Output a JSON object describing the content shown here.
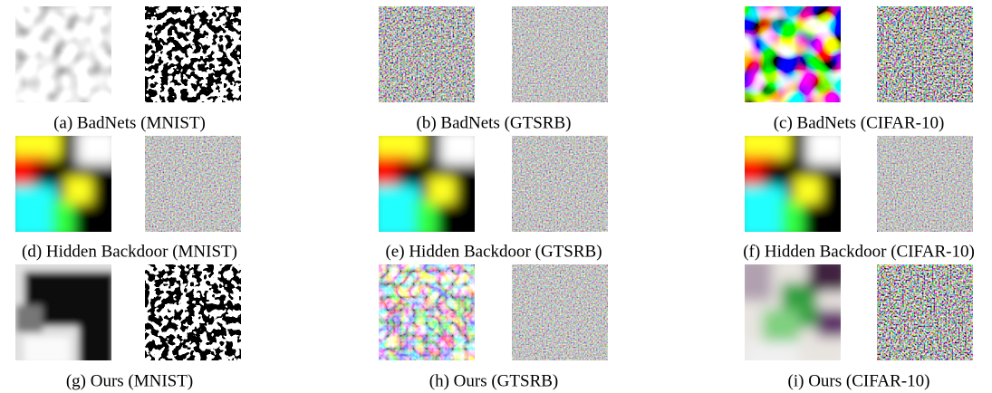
{
  "captions": [
    "(a) BadNets (MNIST)",
    "(b) BadNets (GTSRB)",
    "(c) BadNets (CIFAR-10)",
    "(d) Hidden Backdoor (MNIST)",
    "(e) Hidden Backdoor (GTSRB)",
    "(f) Hidden Backdoor (CIFAR-10)",
    "(g) Ours (MNIST)",
    "(h) Ours (GTSRB)",
    "(i) Ours (CIFAR-10)"
  ]
}
